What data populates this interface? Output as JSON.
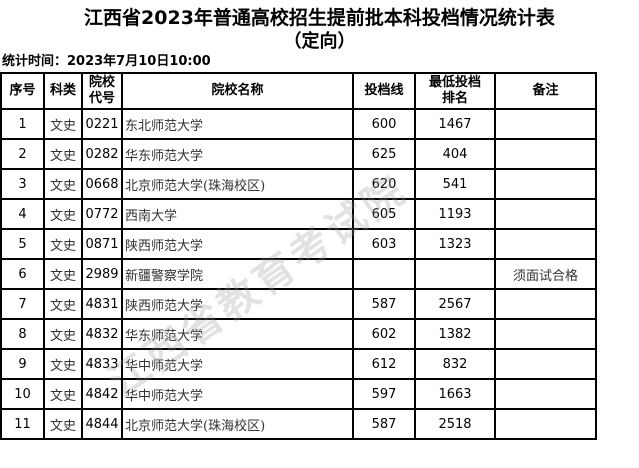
{
  "title": "江西省2023年普通高校招生提前批本科投档情况统计表",
  "subtitle": "（定向）",
  "stat_time": "统计时间：2023年7月10日10:00",
  "watermark": "江西省教育考试院",
  "columns": [
    "序号",
    "科类",
    "院校代号",
    "院校名称",
    "投档线",
    "最低投档排名",
    "备注"
  ],
  "rows": [
    {
      "no": "1",
      "cat": "文史",
      "code": "0221",
      "name": "东北师范大学",
      "line": "600",
      "rank": "1467",
      "note": ""
    },
    {
      "no": "2",
      "cat": "文史",
      "code": "0282",
      "name": "华东师范大学",
      "line": "625",
      "rank": "404",
      "note": ""
    },
    {
      "no": "3",
      "cat": "文史",
      "code": "0668",
      "name": "北京师范大学(珠海校区)",
      "line": "620",
      "rank": "541",
      "note": ""
    },
    {
      "no": "4",
      "cat": "文史",
      "code": "0772",
      "name": "西南大学",
      "line": "605",
      "rank": "1193",
      "note": ""
    },
    {
      "no": "5",
      "cat": "文史",
      "code": "0871",
      "name": "陕西师范大学",
      "line": "603",
      "rank": "1323",
      "note": ""
    },
    {
      "no": "6",
      "cat": "文史",
      "code": "2989",
      "name": "新疆警察学院",
      "line": "",
      "rank": "",
      "note": "须面试合格"
    },
    {
      "no": "7",
      "cat": "文史",
      "code": "4831",
      "name": "陕西师范大学",
      "line": "587",
      "rank": "2567",
      "note": ""
    },
    {
      "no": "8",
      "cat": "文史",
      "code": "4832",
      "name": "华东师范大学",
      "line": "602",
      "rank": "1382",
      "note": ""
    },
    {
      "no": "9",
      "cat": "文史",
      "code": "4833",
      "name": "华中师范大学",
      "line": "612",
      "rank": "832",
      "note": ""
    },
    {
      "no": "10",
      "cat": "文史",
      "code": "4842",
      "name": "华中师范大学",
      "line": "597",
      "rank": "1663",
      "note": ""
    },
    {
      "no": "11",
      "cat": "文史",
      "code": "4844",
      "name": "北京师范大学(珠海校区)",
      "line": "587",
      "rank": "2518",
      "note": ""
    }
  ]
}
